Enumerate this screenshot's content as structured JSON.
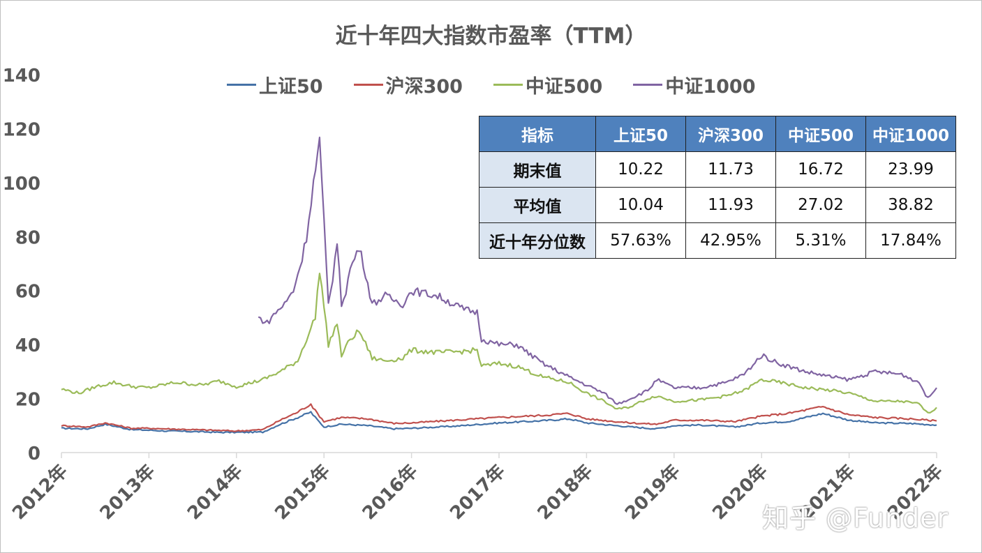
{
  "colors": {
    "shangzheng50": "#4572a7",
    "hushen300": "#c0504d",
    "zhongzheng500": "#9bbb59",
    "zhongzheng1000": "#8064a2",
    "table_header": "#4f81bd",
    "table_rowhead": "#dbe5f1"
  },
  "chart_data": {
    "type": "line",
    "title": "近十年四大指数市盈率（TTM）",
    "xlabel": "",
    "ylabel": "",
    "ylim": [
      0,
      140
    ],
    "yticks": [
      "0",
      "20",
      "40",
      "60",
      "80",
      "100",
      "120",
      "140"
    ],
    "xlim": [
      2012.0,
      2022.0
    ],
    "xticks": [
      "2012年",
      "2013年",
      "2014年",
      "2015年",
      "2016年",
      "2017年",
      "2018年",
      "2019年",
      "2020年",
      "2021年",
      "2022年"
    ],
    "grid": false,
    "legend": "top",
    "series": [
      {
        "name": "上证50",
        "color": "#4572a7",
        "x": [
          2012.0,
          2012.3,
          2012.5,
          2012.8,
          2013.0,
          2013.2,
          2013.5,
          2013.8,
          2014.0,
          2014.3,
          2014.5,
          2014.7,
          2014.85,
          2014.9,
          2015.0,
          2015.2,
          2015.5,
          2015.8,
          2016.0,
          2016.5,
          2017.0,
          2017.5,
          2017.8,
          2018.0,
          2018.5,
          2018.8,
          2019.0,
          2019.3,
          2019.7,
          2020.0,
          2020.3,
          2020.7,
          2021.0,
          2021.3,
          2021.7,
          2022.0
        ],
        "y": [
          9.0,
          8.8,
          10.5,
          8.5,
          8.3,
          8.0,
          7.8,
          7.5,
          7.5,
          7.6,
          10.5,
          13.0,
          15.0,
          13.0,
          9.5,
          10.5,
          10.0,
          8.8,
          9.0,
          9.8,
          11.0,
          11.8,
          12.5,
          11.0,
          9.5,
          8.8,
          10.0,
          10.2,
          9.5,
          11.0,
          11.5,
          14.5,
          12.0,
          11.0,
          10.8,
          10.2
        ]
      },
      {
        "name": "沪深300",
        "color": "#c0504d",
        "x": [
          2012.0,
          2012.3,
          2012.5,
          2012.8,
          2013.0,
          2013.2,
          2013.5,
          2013.8,
          2014.0,
          2014.3,
          2014.5,
          2014.7,
          2014.85,
          2014.9,
          2015.0,
          2015.2,
          2015.5,
          2015.8,
          2016.0,
          2016.5,
          2017.0,
          2017.5,
          2017.8,
          2018.0,
          2018.5,
          2018.8,
          2019.0,
          2019.3,
          2019.7,
          2020.0,
          2020.3,
          2020.7,
          2021.0,
          2021.3,
          2021.7,
          2022.0
        ],
        "y": [
          10.0,
          9.5,
          11.0,
          9.0,
          9.0,
          8.8,
          8.5,
          8.2,
          8.0,
          8.5,
          12.0,
          15.0,
          18.0,
          15.5,
          11.5,
          13.0,
          12.5,
          10.8,
          11.0,
          12.0,
          13.0,
          13.8,
          14.5,
          12.5,
          11.0,
          10.5,
          12.0,
          12.0,
          11.5,
          13.5,
          14.5,
          17.0,
          14.0,
          13.0,
          12.5,
          11.73
        ]
      },
      {
        "name": "中证500",
        "color": "#9bbb59",
        "x": [
          2012.0,
          2012.2,
          2012.4,
          2012.6,
          2012.8,
          2013.0,
          2013.3,
          2013.6,
          2013.8,
          2014.0,
          2014.3,
          2014.5,
          2014.7,
          2014.8,
          2014.9,
          2014.95,
          2015.05,
          2015.15,
          2015.2,
          2015.3,
          2015.4,
          2015.45,
          2015.55,
          2015.7,
          2015.9,
          2016.0,
          2016.3,
          2016.6,
          2016.75,
          2016.8,
          2017.0,
          2017.2,
          2017.5,
          2017.8,
          2018.0,
          2018.2,
          2018.35,
          2018.5,
          2018.7,
          2018.8,
          2019.0,
          2019.3,
          2019.6,
          2019.8,
          2020.0,
          2020.2,
          2020.5,
          2020.8,
          2021.0,
          2021.3,
          2021.6,
          2021.8,
          2021.9,
          2022.0
        ],
        "y": [
          23.5,
          22.0,
          24.5,
          26.0,
          24.5,
          24.0,
          26.0,
          25.0,
          26.5,
          24.5,
          27.0,
          30.0,
          34.0,
          42.0,
          50.0,
          68.0,
          40.0,
          48.0,
          36.0,
          42.0,
          45.0,
          42.0,
          35.0,
          34.0,
          35.0,
          38.0,
          37.0,
          37.5,
          38.0,
          32.0,
          33.0,
          32.0,
          28.0,
          26.0,
          22.0,
          19.0,
          16.0,
          17.0,
          20.0,
          21.0,
          19.0,
          19.5,
          21.0,
          23.0,
          27.0,
          26.0,
          24.0,
          23.0,
          22.0,
          19.0,
          19.0,
          18.0,
          14.5,
          16.72
        ]
      },
      {
        "name": "中证1000",
        "color": "#8064a2",
        "x": [
          2014.25,
          2014.35,
          2014.45,
          2014.55,
          2014.65,
          2014.75,
          2014.8,
          2014.88,
          2014.95,
          2015.0,
          2015.05,
          2015.1,
          2015.15,
          2015.2,
          2015.25,
          2015.3,
          2015.4,
          2015.45,
          2015.55,
          2015.7,
          2015.9,
          2016.0,
          2016.3,
          2016.6,
          2016.75,
          2016.8,
          2017.0,
          2017.2,
          2017.5,
          2017.8,
          2018.0,
          2018.2,
          2018.35,
          2018.5,
          2018.7,
          2018.8,
          2019.0,
          2019.3,
          2019.6,
          2019.8,
          2020.0,
          2020.2,
          2020.5,
          2020.8,
          2021.0,
          2021.3,
          2021.6,
          2021.8,
          2021.9,
          2022.0
        ],
        "y": [
          50.0,
          48.0,
          52.0,
          55.0,
          60.0,
          72.0,
          80.0,
          100.0,
          115.0,
          85.0,
          55.0,
          65.0,
          78.0,
          55.0,
          60.0,
          68.0,
          76.0,
          70.0,
          55.0,
          58.0,
          55.0,
          60.0,
          58.0,
          53.0,
          52.0,
          42.0,
          40.0,
          40.0,
          33.0,
          28.0,
          25.0,
          22.0,
          18.0,
          20.0,
          23.0,
          27.0,
          24.0,
          24.0,
          26.0,
          29.0,
          36.0,
          33.0,
          30.0,
          28.0,
          27.0,
          30.0,
          29.0,
          26.0,
          20.0,
          23.99
        ]
      }
    ]
  },
  "table": {
    "headers": [
      "指标",
      "上证50",
      "沪深300",
      "中证500",
      "中证1000"
    ],
    "rows": [
      [
        "期末值",
        "10.22",
        "11.73",
        "16.72",
        "23.99"
      ],
      [
        "平均值",
        "10.04",
        "11.93",
        "27.02",
        "38.82"
      ],
      [
        "近十年分位数",
        "57.63%",
        "42.95%",
        "5.31%",
        "17.84%"
      ]
    ]
  },
  "watermark": "知乎 @Funder"
}
